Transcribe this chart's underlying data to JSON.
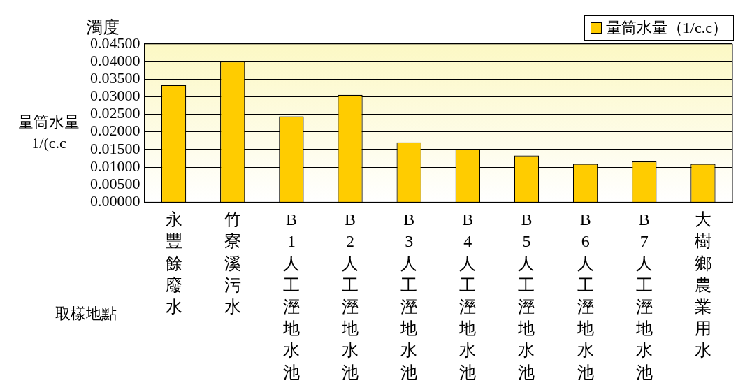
{
  "chart_data": {
    "type": "bar",
    "title": "濁度",
    "ylabel": "量筒水量\n1/(c.c",
    "xlabel": "取樣地點",
    "categories": [
      "永豐餘廢水",
      "竹寮溪污水",
      "B1人工溼地水池",
      "B2人工溼地水池",
      "B3人工溼地水池",
      "B4人工溼地水池",
      "B5人工溼地水池",
      "B6人工溼地水池",
      "B7人工溼地水池",
      "大樹鄉農業用水"
    ],
    "series": [
      {
        "name": "量筒水量（1/c.c）",
        "color": "#ffcc00",
        "values": [
          0.0333,
          0.04,
          0.0244,
          0.0305,
          0.017,
          0.0151,
          0.0133,
          0.0109,
          0.0116,
          0.0109
        ]
      }
    ],
    "ylim": [
      0,
      0.045
    ],
    "yticks": [
      {
        "value": 0,
        "label": "0.00000"
      },
      {
        "value": 0.005,
        "label": "0.00500"
      },
      {
        "value": 0.01,
        "label": "0.01000"
      },
      {
        "value": 0.015,
        "label": "0.01500"
      },
      {
        "value": 0.02,
        "label": "0.02000"
      },
      {
        "value": 0.025,
        "label": "0.02500"
      },
      {
        "value": 0.03,
        "label": "0.03000"
      },
      {
        "value": 0.035,
        "label": "0.03500"
      },
      {
        "value": 0.04,
        "label": "0.04000"
      },
      {
        "value": 0.045,
        "label": "0.04500"
      }
    ],
    "grid": "y",
    "legend": "top right"
  }
}
